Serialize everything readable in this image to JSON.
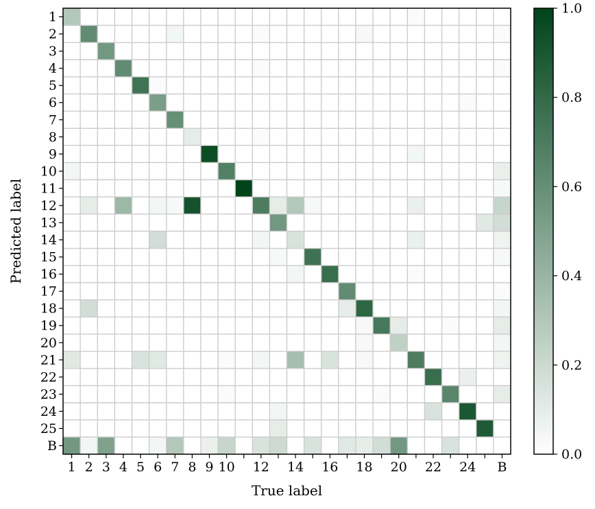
{
  "chart_data": {
    "type": "heatmap",
    "title": "",
    "xlabel": "True label",
    "ylabel": "Predicted label",
    "classes": [
      "1",
      "2",
      "3",
      "4",
      "5",
      "6",
      "7",
      "8",
      "9",
      "10",
      "11",
      "12",
      "13",
      "14",
      "15",
      "16",
      "17",
      "18",
      "19",
      "20",
      "21",
      "22",
      "23",
      "24",
      "25",
      "B"
    ],
    "x_tick_labels": [
      "1",
      "2",
      "3",
      "4",
      "5",
      "6",
      "7",
      "8",
      "9",
      "10",
      "",
      "12",
      "",
      "14",
      "",
      "16",
      "",
      "18",
      "",
      "20",
      "",
      "22",
      "",
      "24",
      "",
      "B"
    ],
    "y_tick_labels": [
      "1",
      "2",
      "3",
      "4",
      "5",
      "6",
      "7",
      "8",
      "9",
      "10",
      "11",
      "12",
      "13",
      "14",
      "15",
      "16",
      "17",
      "18",
      "19",
      "20",
      "21",
      "22",
      "23",
      "24",
      "25",
      "B"
    ],
    "colorbar": {
      "range": [
        0.0,
        1.0
      ],
      "ticks": [
        0.0,
        0.2,
        0.4,
        0.6,
        0.8,
        1.0
      ],
      "tick_labels": [
        "0.0",
        "0.2",
        "0.4",
        "0.6",
        "0.8",
        "1.0"
      ],
      "color_low": "#ffffff",
      "color_high": "#00441b"
    },
    "grid": true,
    "grid_color": "#cccccc",
    "values": [
      [
        0.3,
        0,
        0,
        0,
        0,
        0,
        0,
        0,
        0,
        0,
        0,
        0,
        0,
        0,
        0,
        0,
        0,
        0,
        0,
        0,
        0.02,
        0,
        0,
        0,
        0,
        0
      ],
      [
        0,
        0.62,
        0,
        0,
        0,
        0,
        0.05,
        0,
        0,
        0,
        0,
        0.02,
        0,
        0,
        0,
        0,
        0,
        0.03,
        0,
        0,
        0,
        0,
        0,
        0,
        0,
        0.02
      ],
      [
        0,
        0,
        0.55,
        0,
        0,
        0,
        0,
        0,
        0,
        0,
        0,
        0,
        0,
        0,
        0,
        0,
        0,
        0,
        0,
        0,
        0,
        0,
        0,
        0,
        0,
        0
      ],
      [
        0,
        0,
        0,
        0.62,
        0,
        0,
        0,
        0,
        0,
        0,
        0,
        0.02,
        0,
        0,
        0,
        0,
        0,
        0,
        0,
        0,
        0,
        0,
        0,
        0,
        0,
        0.02
      ],
      [
        0,
        0,
        0,
        0,
        0.75,
        0.02,
        0,
        0,
        0,
        0,
        0,
        0,
        0,
        0,
        0,
        0,
        0,
        0,
        0,
        0,
        0,
        0,
        0,
        0,
        0,
        0
      ],
      [
        0,
        0,
        0,
        0,
        0,
        0.52,
        0,
        0,
        0,
        0,
        0,
        0,
        0,
        0,
        0,
        0,
        0,
        0,
        0,
        0,
        0,
        0,
        0,
        0.02,
        0,
        0
      ],
      [
        0,
        0,
        0,
        0,
        0,
        0,
        0.6,
        0,
        0,
        0,
        0,
        0,
        0,
        0,
        0,
        0,
        0,
        0,
        0,
        0,
        0,
        0,
        0,
        0,
        0,
        0
      ],
      [
        0,
        0,
        0,
        0,
        0,
        0,
        0,
        0.1,
        0,
        0,
        0,
        0.02,
        0,
        0,
        0,
        0,
        0,
        0,
        0,
        0,
        0,
        0,
        0,
        0,
        0,
        0
      ],
      [
        0,
        0,
        0,
        0,
        0,
        0,
        0,
        0,
        0.95,
        0,
        0,
        0,
        0,
        0,
        0,
        0,
        0,
        0,
        0,
        0,
        0.05,
        0,
        0,
        0,
        0,
        0
      ],
      [
        0.05,
        0,
        0,
        0,
        0,
        0,
        0,
        0,
        0,
        0.68,
        0,
        0,
        0,
        0,
        0,
        0,
        0,
        0,
        0,
        0,
        0,
        0,
        0,
        0,
        0,
        0.08
      ],
      [
        0,
        0,
        0,
        0,
        0,
        0,
        0,
        0,
        0,
        0,
        1.0,
        0,
        0,
        0,
        0,
        0,
        0,
        0,
        0,
        0,
        0,
        0,
        0,
        0,
        0,
        0.03
      ],
      [
        0,
        0.1,
        0,
        0.38,
        0,
        0.05,
        0.03,
        0.92,
        0,
        0,
        0,
        0.7,
        0.1,
        0.3,
        0.03,
        0,
        0,
        0,
        0,
        0,
        0.08,
        0,
        0,
        0,
        0,
        0.22
      ],
      [
        0,
        0,
        0,
        0,
        0,
        0,
        0,
        0,
        0,
        0,
        0,
        0,
        0.55,
        0,
        0,
        0,
        0,
        0,
        0,
        0,
        0,
        0,
        0,
        0,
        0.12,
        0.18
      ],
      [
        0,
        0,
        0,
        0,
        0,
        0.18,
        0,
        0,
        0,
        0,
        0,
        0.05,
        0,
        0.15,
        0,
        0,
        0,
        0,
        0,
        0,
        0.08,
        0,
        0,
        0,
        0,
        0.06
      ],
      [
        0,
        0,
        0,
        0,
        0,
        0,
        0,
        0,
        0,
        0,
        0,
        0,
        0.03,
        0,
        0.75,
        0,
        0,
        0,
        0,
        0,
        0,
        0,
        0,
        0,
        0,
        0.03
      ],
      [
        0,
        0,
        0,
        0,
        0,
        0,
        0,
        0,
        0,
        0,
        0,
        0,
        0,
        0.05,
        0,
        0.78,
        0,
        0,
        0,
        0,
        0.02,
        0,
        0,
        0,
        0,
        0
      ],
      [
        0,
        0,
        0,
        0,
        0,
        0,
        0,
        0,
        0,
        0,
        0,
        0,
        0,
        0,
        0,
        0,
        0.62,
        0,
        0,
        0,
        0,
        0,
        0,
        0,
        0,
        0.02
      ],
      [
        0,
        0.18,
        0,
        0,
        0,
        0,
        0,
        0,
        0,
        0,
        0,
        0,
        0,
        0,
        0,
        0,
        0.1,
        0.82,
        0,
        0,
        0,
        0,
        0,
        0,
        0,
        0.05
      ],
      [
        0,
        0,
        0,
        0,
        0,
        0,
        0,
        0,
        0,
        0,
        0,
        0,
        0,
        0,
        0,
        0,
        0,
        0.03,
        0.72,
        0.1,
        0,
        0,
        0.02,
        0,
        0,
        0.1
      ],
      [
        0,
        0,
        0,
        0,
        0,
        0,
        0,
        0,
        0,
        0,
        0,
        0,
        0,
        0,
        0,
        0,
        0,
        0.03,
        0,
        0.25,
        0,
        0,
        0,
        0,
        0,
        0.05
      ],
      [
        0.12,
        0,
        0,
        0,
        0.15,
        0.12,
        0,
        0,
        0,
        0.02,
        0,
        0.05,
        0,
        0.35,
        0,
        0.15,
        0,
        0.03,
        0,
        0,
        0.7,
        0,
        0,
        0,
        0,
        0.06
      ],
      [
        0,
        0,
        0,
        0,
        0,
        0,
        0,
        0,
        0,
        0,
        0,
        0,
        0,
        0,
        0,
        0,
        0,
        0,
        0,
        0,
        0,
        0.78,
        0,
        0.08,
        0,
        0
      ],
      [
        0,
        0,
        0,
        0,
        0,
        0,
        0,
        0,
        0,
        0.02,
        0,
        0,
        0,
        0,
        0,
        0,
        0,
        0,
        0.02,
        0,
        0,
        0,
        0.65,
        0,
        0,
        0.1
      ],
      [
        0,
        0,
        0,
        0,
        0,
        0,
        0,
        0,
        0,
        0,
        0,
        0,
        0.05,
        0,
        0,
        0,
        0,
        0,
        0,
        0,
        0,
        0.15,
        0,
        0.9,
        0,
        0
      ],
      [
        0,
        0,
        0,
        0,
        0,
        0,
        0,
        0,
        0,
        0,
        0,
        0,
        0.1,
        0,
        0,
        0,
        0,
        0,
        0,
        0,
        0,
        0,
        0,
        0,
        0.88,
        0
      ],
      [
        0.55,
        0.05,
        0.5,
        0,
        0,
        0.05,
        0.3,
        0,
        0.08,
        0.22,
        0,
        0.15,
        0.2,
        0,
        0.15,
        0,
        0.12,
        0.1,
        0.18,
        0.55,
        0,
        0,
        0.15,
        0,
        0,
        0
      ]
    ]
  }
}
